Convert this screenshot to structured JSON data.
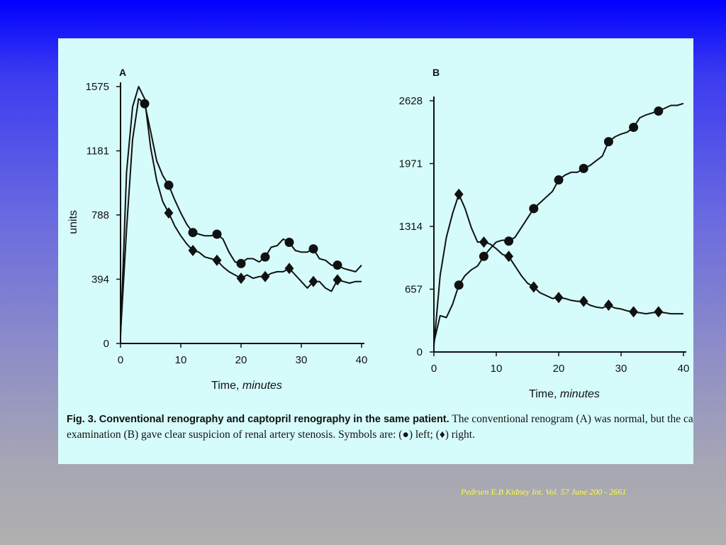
{
  "caption": {
    "fig_label": "Fig. 3.",
    "title": "Conventional renography and captopril renography in the same patient.",
    "line1_rest": "The conventional renogram (A) was normal, but the captopri",
    "line2": "examination (B) gave clear suspicion of renal artery stenosis. Symbols are: (●) left; (♦) right."
  },
  "citation": "Pedrsen E.B Kidney Int. Vol. 57 June 200 - 2661",
  "chart_data": [
    {
      "type": "line",
      "panel": "A",
      "xlabel": "Time,",
      "xlabel_italic": "minutes",
      "ylabel": "units",
      "xlim": [
        0,
        40
      ],
      "ylim": [
        0,
        1575
      ],
      "xticks": [
        0,
        10,
        20,
        30,
        40
      ],
      "yticks": [
        0,
        394,
        788,
        1181,
        1575
      ],
      "series": [
        {
          "marker": "circle",
          "x": [
            0,
            1,
            2,
            3,
            4,
            5,
            6,
            7,
            8,
            9,
            10,
            11,
            12,
            13,
            14,
            15,
            16,
            17,
            18,
            19,
            20,
            21,
            22,
            23,
            24,
            25,
            26,
            27,
            28,
            29,
            30,
            31,
            32,
            33,
            34,
            35,
            36,
            37,
            38,
            39,
            40
          ],
          "y": [
            60,
            700,
            1250,
            1500,
            1470,
            1300,
            1120,
            1030,
            970,
            880,
            800,
            730,
            680,
            670,
            660,
            660,
            670,
            640,
            560,
            500,
            490,
            520,
            520,
            500,
            530,
            590,
            600,
            640,
            620,
            570,
            560,
            560,
            580,
            520,
            510,
            480,
            480,
            460,
            450,
            440,
            480
          ],
          "markers_at": [
            4,
            8,
            12,
            16,
            20,
            24,
            28,
            32,
            36
          ]
        },
        {
          "marker": "diamond",
          "x": [
            0,
            1,
            2,
            3,
            4,
            5,
            6,
            7,
            8,
            9,
            10,
            11,
            12,
            13,
            14,
            15,
            16,
            17,
            18,
            19,
            20,
            21,
            22,
            23,
            24,
            25,
            26,
            27,
            28,
            29,
            30,
            31,
            32,
            33,
            34,
            35,
            36,
            37,
            38,
            39,
            40
          ],
          "y": [
            40,
            1050,
            1450,
            1575,
            1500,
            1200,
            1000,
            870,
            800,
            720,
            660,
            610,
            570,
            560,
            530,
            520,
            510,
            470,
            440,
            420,
            400,
            420,
            400,
            410,
            410,
            430,
            440,
            440,
            460,
            420,
            380,
            340,
            380,
            380,
            340,
            320,
            390,
            380,
            370,
            380,
            380
          ],
          "markers_at": [
            8,
            12,
            16,
            20,
            24,
            28,
            32,
            36
          ]
        }
      ]
    },
    {
      "type": "line",
      "panel": "B",
      "xlabel": "Time,",
      "xlabel_italic": "minutes",
      "ylabel": "",
      "xlim": [
        0,
        40
      ],
      "ylim": [
        0,
        2628
      ],
      "xticks": [
        0,
        10,
        20,
        30,
        40
      ],
      "yticks": [
        0,
        657,
        1314,
        1971,
        2628
      ],
      "series": [
        {
          "marker": "circle",
          "x": [
            0,
            1,
            2,
            3,
            4,
            5,
            6,
            7,
            8,
            9,
            10,
            11,
            12,
            13,
            14,
            15,
            16,
            17,
            18,
            19,
            20,
            21,
            22,
            23,
            24,
            25,
            26,
            27,
            28,
            29,
            30,
            31,
            32,
            33,
            34,
            35,
            36,
            37,
            38,
            39,
            40
          ],
          "y": [
            100,
            380,
            360,
            500,
            700,
            800,
            860,
            900,
            1000,
            1080,
            1150,
            1170,
            1160,
            1200,
            1300,
            1400,
            1500,
            1560,
            1620,
            1680,
            1800,
            1850,
            1880,
            1880,
            1920,
            1950,
            2000,
            2050,
            2200,
            2250,
            2280,
            2300,
            2350,
            2450,
            2480,
            2500,
            2520,
            2550,
            2580,
            2580,
            2600
          ],
          "markers_at": [
            4,
            8,
            12,
            16,
            20,
            24,
            28,
            32,
            36
          ]
        },
        {
          "marker": "diamond",
          "x": [
            0,
            1,
            2,
            3,
            4,
            5,
            6,
            7,
            8,
            9,
            10,
            11,
            12,
            13,
            14,
            15,
            16,
            17,
            18,
            19,
            20,
            21,
            22,
            23,
            24,
            25,
            26,
            27,
            28,
            29,
            30,
            31,
            32,
            33,
            34,
            35,
            36,
            37,
            38,
            39,
            40
          ],
          "y": [
            60,
            800,
            1200,
            1450,
            1650,
            1500,
            1300,
            1150,
            1150,
            1130,
            1080,
            1020,
            1000,
            900,
            800,
            720,
            680,
            620,
            590,
            560,
            570,
            560,
            540,
            530,
            530,
            490,
            470,
            460,
            490,
            460,
            450,
            430,
            420,
            410,
            400,
            410,
            420,
            410,
            400,
            400,
            400
          ],
          "markers_at": [
            4,
            8,
            12,
            16,
            20,
            24,
            28,
            32,
            36
          ]
        }
      ]
    }
  ]
}
